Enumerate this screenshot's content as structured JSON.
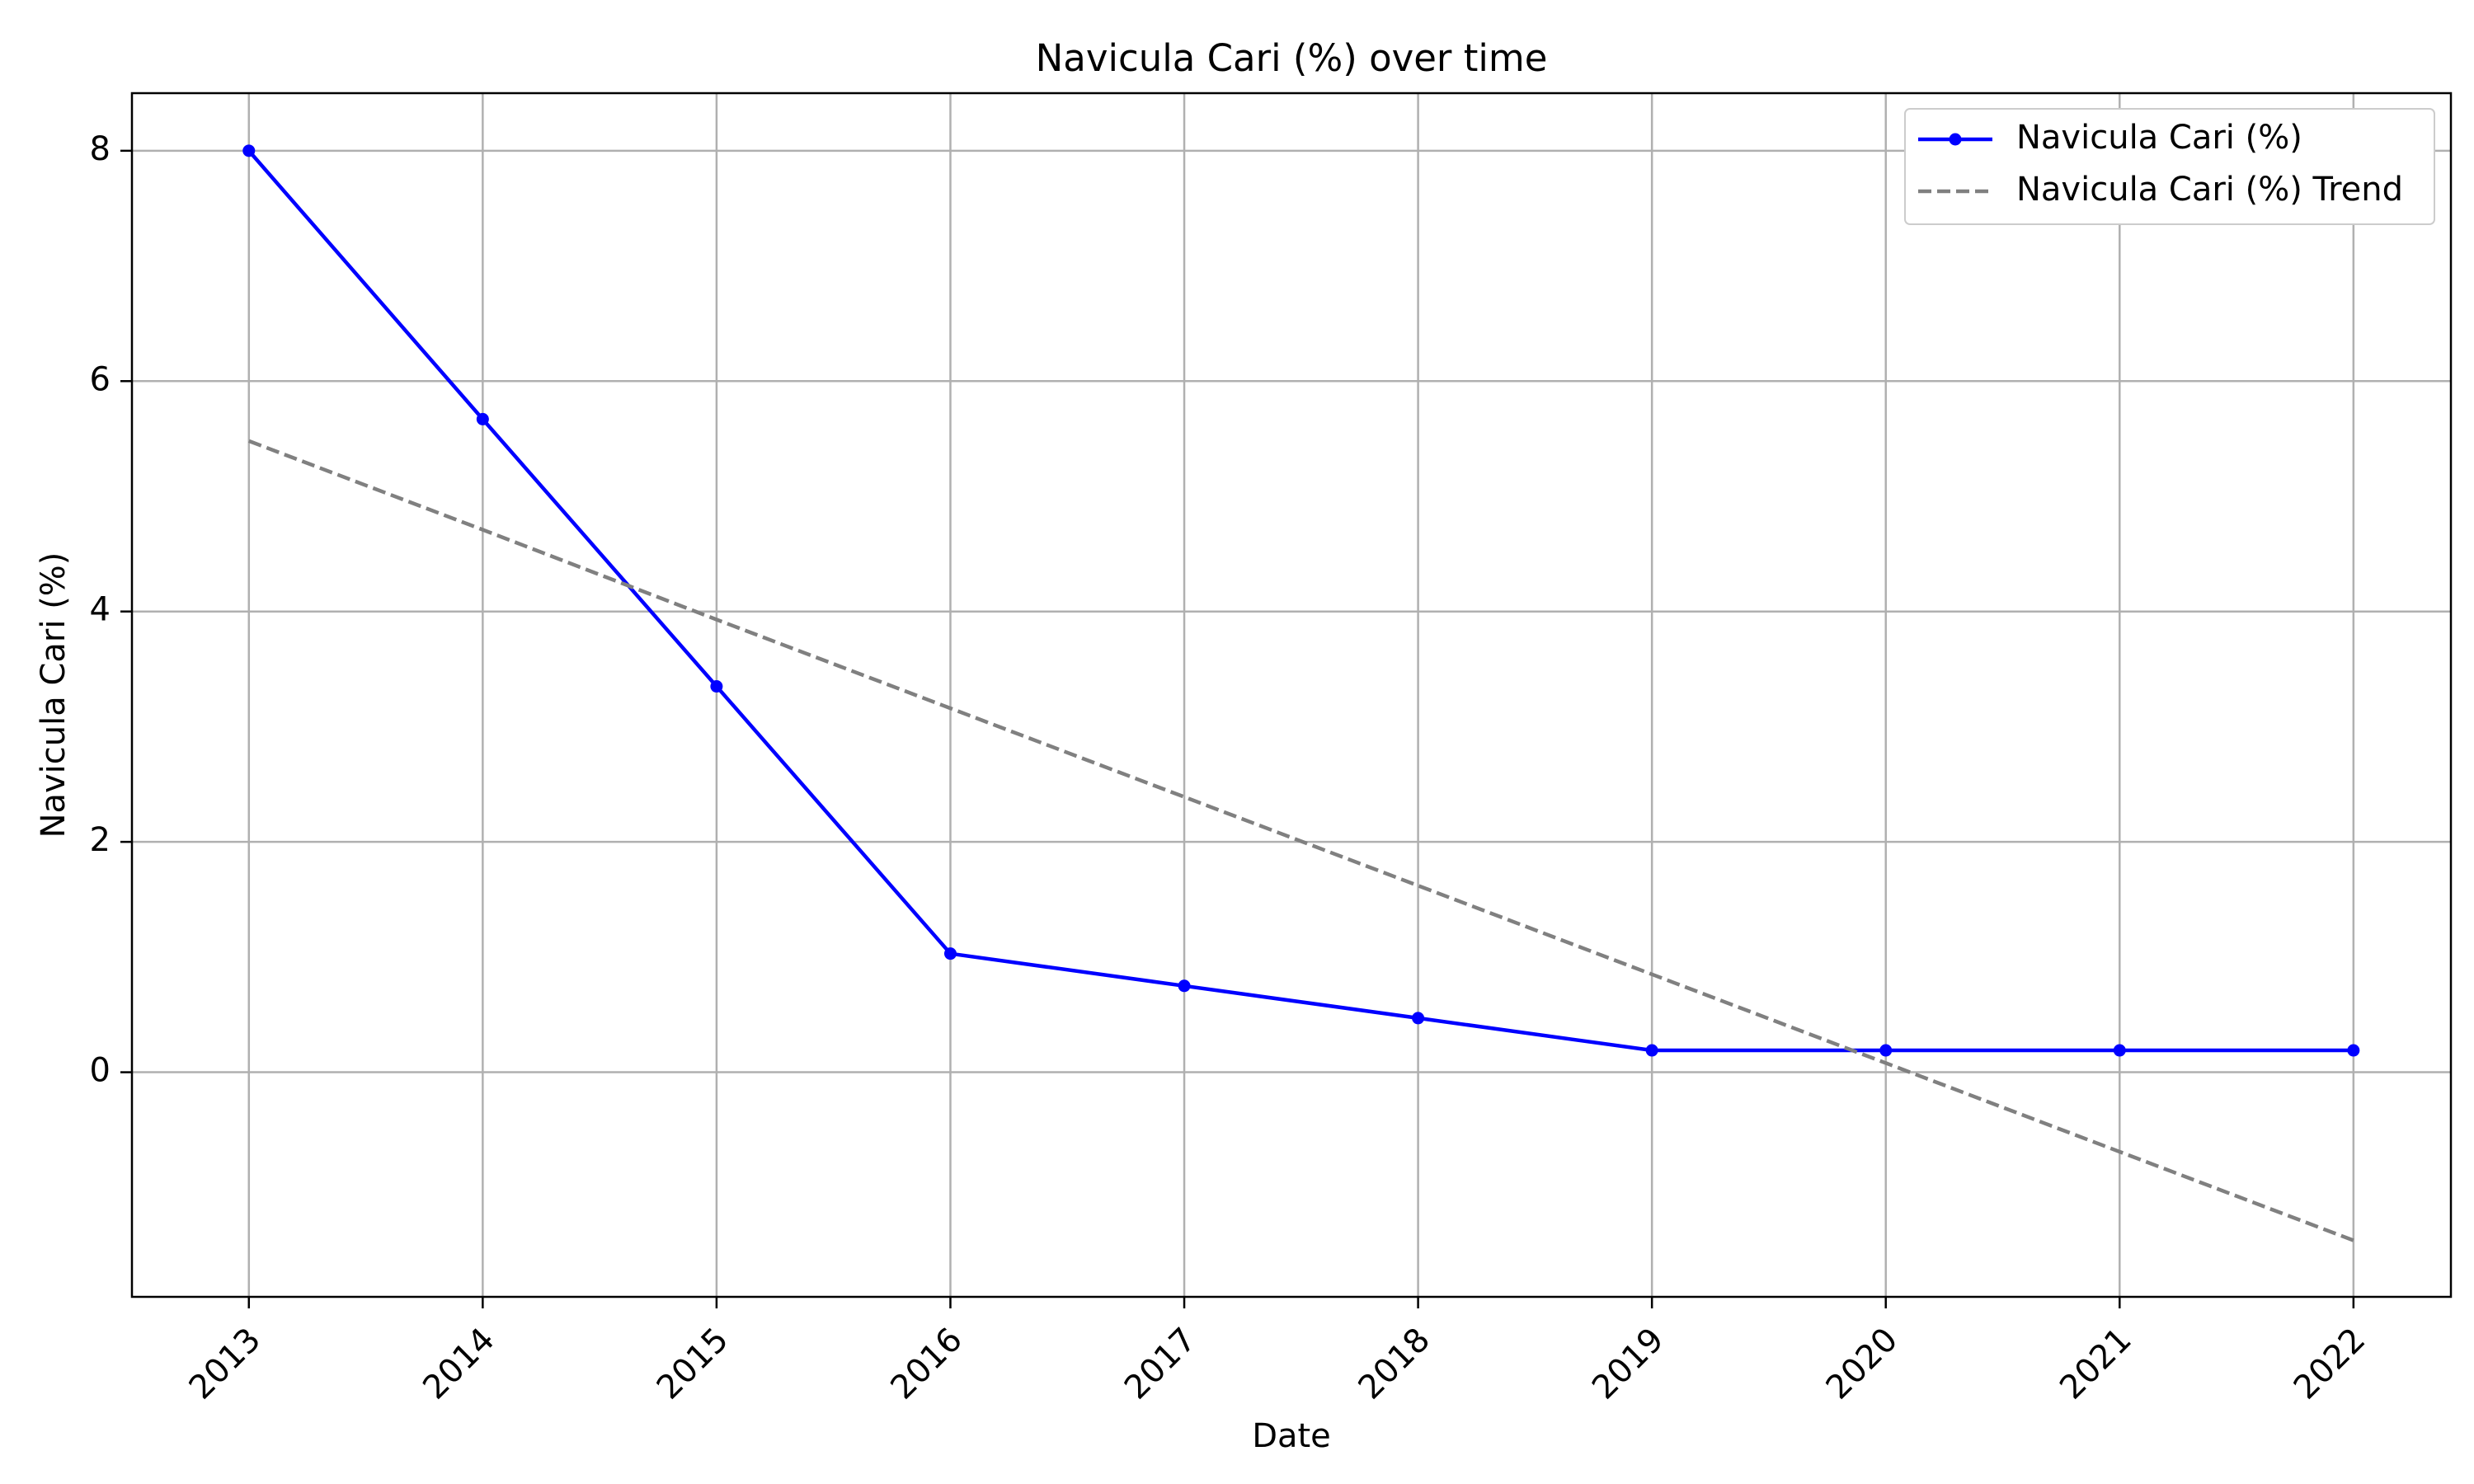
{
  "chart_data": {
    "type": "line",
    "title": "Navicula Cari (%) over time",
    "xlabel": "Date",
    "ylabel": "Navicula Cari (%)",
    "x": [
      "2013",
      "2014",
      "2015",
      "2016",
      "2017",
      "2018",
      "2019",
      "2020",
      "2021",
      "2022"
    ],
    "xlim": [
      "2012-07",
      "2022-06"
    ],
    "ylim": [
      -1.95,
      8.5
    ],
    "yticks": [
      0,
      2,
      4,
      6,
      8
    ],
    "grid": true,
    "legend_position": "upper right",
    "series": [
      {
        "name": "Navicula Cari (%)",
        "color": "#0000ff",
        "style": "solid",
        "marker": "circle",
        "values": [
          8.0,
          5.67,
          3.35,
          1.03,
          0.75,
          0.47,
          0.19,
          0.19,
          0.19,
          0.19
        ]
      },
      {
        "name": "Navicula Cari (%) Trend",
        "color": "#808080",
        "style": "dashed",
        "marker": "none",
        "values": [
          5.48,
          4.71,
          3.93,
          3.16,
          2.39,
          1.62,
          0.85,
          0.08,
          -0.69,
          -1.46
        ]
      }
    ]
  }
}
